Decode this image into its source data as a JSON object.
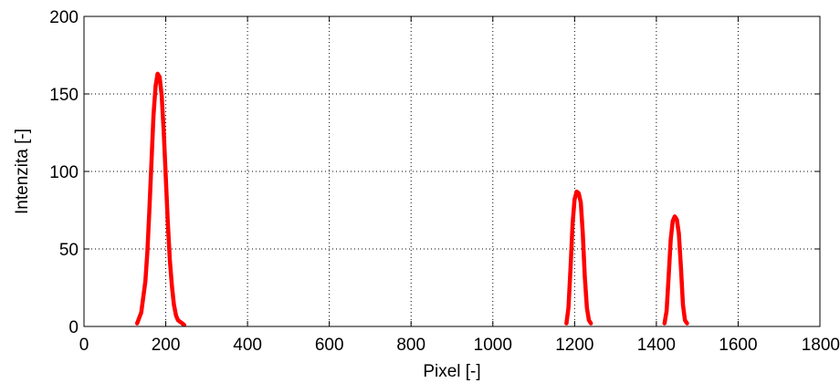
{
  "chart_data": {
    "type": "line",
    "title": "",
    "xlabel": "Pixel [-]",
    "ylabel": "Intenzita [-]",
    "xlim": [
      0,
      1800
    ],
    "ylim": [
      0,
      200
    ],
    "xticks": [
      0,
      200,
      400,
      600,
      800,
      1000,
      1200,
      1400,
      1600,
      1800
    ],
    "yticks": [
      0,
      50,
      100,
      150,
      200
    ],
    "grid": true,
    "colors": {
      "series": "#ff0000",
      "axes": "#000000",
      "grid": "#000000"
    },
    "series": [
      {
        "segments": [
          {
            "x": [
              130,
              140,
              150,
              155,
              160,
              165,
              170,
              175,
              180,
              185,
              190,
              195,
              200,
              205,
              210,
              215,
              220,
              225,
              230,
              240,
              245
            ],
            "y": [
              2,
              9,
              29,
              48,
              75,
              106,
              136,
              155,
              163,
              161,
              149,
              126,
              96,
              67,
              43,
              26,
              14,
              7,
              4,
              2,
              1
            ]
          },
          {
            "x": [
              1180,
              1185,
              1190,
              1195,
              1200,
              1205,
              1210,
              1215,
              1220,
              1225,
              1230,
              1235,
              1240
            ],
            "y": [
              2,
              12,
              38,
              66,
              82,
              87,
              86,
              80,
              60,
              32,
              12,
              4,
              2
            ]
          },
          {
            "x": [
              1420,
              1425,
              1430,
              1435,
              1440,
              1445,
              1450,
              1455,
              1460,
              1465,
              1470,
              1475
            ],
            "y": [
              2,
              10,
              32,
              56,
              68,
              71,
              69,
              60,
              38,
              14,
              4,
              2
            ]
          }
        ]
      }
    ]
  }
}
